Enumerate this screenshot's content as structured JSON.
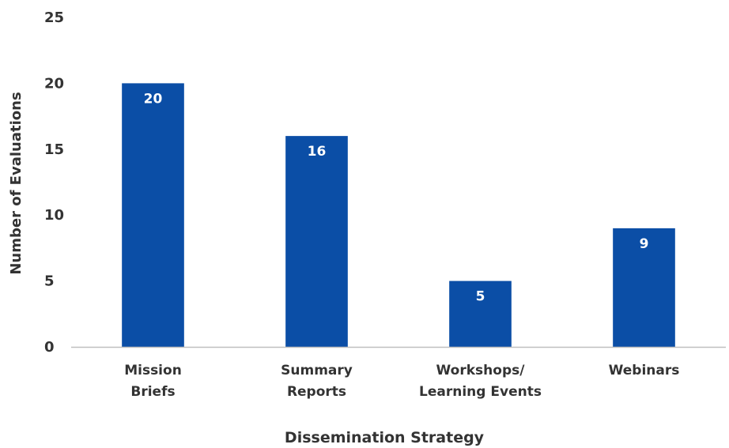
{
  "chart_data": {
    "type": "bar",
    "categories": [
      [
        "Mission",
        "Briefs"
      ],
      [
        "Summary",
        "Reports"
      ],
      [
        "Workshops/",
        "Learning Events"
      ],
      [
        "Webinars"
      ]
    ],
    "values": [
      20,
      16,
      5,
      9
    ],
    "data_labels": [
      "20",
      "16",
      "5",
      "9"
    ],
    "xlabel": "Dissemination Strategy",
    "ylabel": "Number of Evaluations",
    "ylim": [
      0,
      25
    ],
    "yticks": [
      {
        "value": 0,
        "label": "0"
      },
      {
        "value": 5,
        "label": "5"
      },
      {
        "value": 10,
        "label": "10"
      },
      {
        "value": 15,
        "label": "15"
      },
      {
        "value": 20,
        "label": "20"
      },
      {
        "value": 25,
        "label": "25"
      }
    ],
    "grid": false,
    "bar_color": "#0b4ea6",
    "axis_color": "#bfbfbf"
  }
}
